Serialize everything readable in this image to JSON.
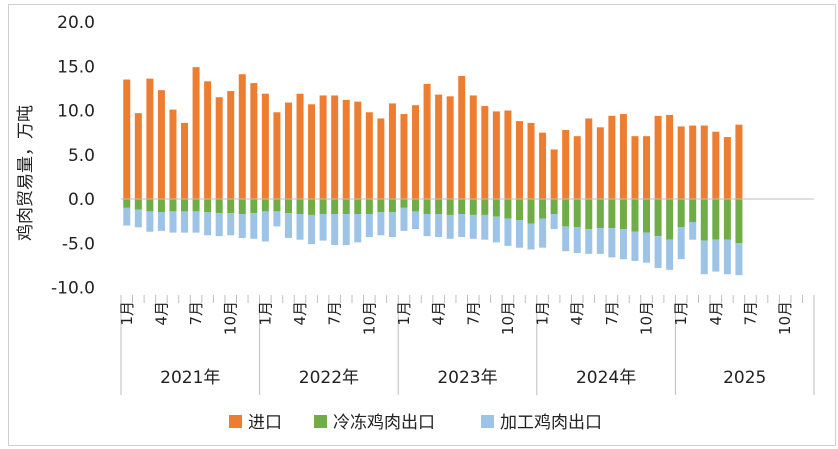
{
  "chart_data": {
    "type": "bar",
    "stacked": true,
    "ylabel": "鸡肉贸易量，万吨",
    "ylim": [
      -10,
      20
    ],
    "yticks": [
      "20.0",
      "15.0",
      "10.0",
      "5.0",
      "0.0",
      "-5.0",
      "-10.0"
    ],
    "ytick_values": [
      20,
      15,
      10,
      5,
      0,
      -5,
      -10
    ],
    "grid": false,
    "legend_position": "bottom",
    "month_tick_labels": [
      "1月",
      "4月",
      "7月",
      "10月"
    ],
    "years": [
      "2021年",
      "2022年",
      "2023年",
      "2024年",
      "2025"
    ],
    "series": [
      {
        "name": "进口",
        "color": "#ED7D31",
        "values": [
          13.5,
          9.7,
          13.6,
          12.3,
          10.1,
          8.6,
          14.9,
          13.3,
          11.5,
          12.2,
          14.1,
          13.1,
          11.9,
          9.8,
          10.9,
          11.9,
          10.7,
          11.7,
          11.7,
          11.2,
          11.0,
          9.8,
          9.1,
          10.8,
          9.6,
          10.6,
          13.0,
          11.8,
          11.6,
          13.9,
          11.7,
          10.5,
          9.9,
          10.0,
          8.8,
          8.6,
          7.5,
          5.6,
          7.8,
          7.1,
          9.1,
          8.1,
          9.4,
          9.6,
          7.1,
          7.1,
          9.4,
          9.5,
          8.2,
          8.3,
          8.3,
          7.6,
          7.0,
          8.4
        ]
      },
      {
        "name": "冷冻鸡肉出口",
        "color": "#70AD47",
        "values": [
          -1.0,
          -1.2,
          -1.4,
          -1.5,
          -1.4,
          -1.4,
          -1.4,
          -1.5,
          -1.6,
          -1.6,
          -1.7,
          -1.6,
          -1.4,
          -1.4,
          -1.6,
          -1.7,
          -1.8,
          -1.7,
          -1.7,
          -1.7,
          -1.7,
          -1.7,
          -1.5,
          -1.5,
          -1.0,
          -1.4,
          -1.7,
          -1.7,
          -1.8,
          -1.7,
          -1.8,
          -1.8,
          -2.0,
          -2.2,
          -2.4,
          -2.8,
          -2.2,
          -1.7,
          -3.1,
          -3.2,
          -3.4,
          -3.3,
          -3.3,
          -3.4,
          -3.7,
          -3.8,
          -4.2,
          -4.6,
          -3.2,
          -2.6,
          -4.7,
          -4.6,
          -4.6,
          -5.0
        ]
      },
      {
        "name": "加工鸡肉出口",
        "color": "#9DC3E6",
        "values": [
          -2.0,
          -2.0,
          -2.3,
          -2.1,
          -2.4,
          -2.4,
          -2.4,
          -2.6,
          -2.6,
          -2.5,
          -2.7,
          -2.9,
          -3.4,
          -1.7,
          -2.8,
          -2.9,
          -3.3,
          -3.0,
          -3.5,
          -3.5,
          -3.2,
          -2.6,
          -2.6,
          -2.8,
          -2.6,
          -2.0,
          -2.5,
          -2.6,
          -2.7,
          -2.6,
          -2.7,
          -2.8,
          -2.9,
          -3.1,
          -3.1,
          -2.9,
          -3.3,
          -1.7,
          -2.8,
          -2.9,
          -2.8,
          -2.9,
          -3.3,
          -3.4,
          -3.3,
          -3.4,
          -3.6,
          -3.4,
          -3.6,
          -2.0,
          -3.8,
          -3.6,
          -3.9,
          -3.6
        ]
      }
    ]
  }
}
